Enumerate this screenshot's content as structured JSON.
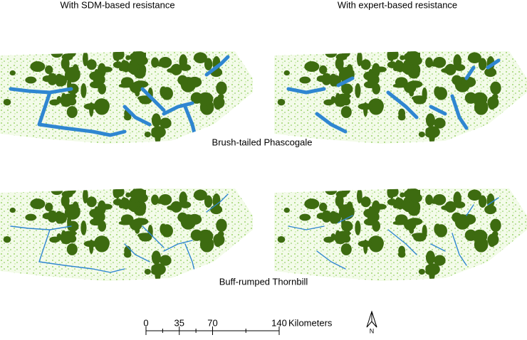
{
  "columns": [
    "With SDM-based resistance",
    "With expert-based resistance"
  ],
  "rows": [
    "Brush-tailed Phascogale",
    "Buff-rumped Thornbill"
  ],
  "scale_bar": {
    "ticks": [
      0,
      35,
      70,
      140
    ],
    "unit": "Kilometers"
  },
  "north_arrow": "N"
}
